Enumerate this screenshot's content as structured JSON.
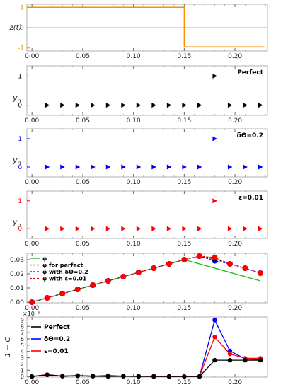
{
  "chart_data": [
    {
      "type": "line",
      "ylabel": "z(t)",
      "x_ticks": [
        "0.00",
        "0.05",
        "0.10",
        "0.15",
        "0.20"
      ],
      "y_ticks": [
        "1",
        "0",
        "-1"
      ],
      "xlim": [
        -0.005,
        0.232
      ],
      "ylim": [
        -1.15,
        1.15
      ],
      "series": [
        {
          "color": "#ff8c00",
          "x": [
            -0.005,
            0.15,
            0.15,
            0.229
          ],
          "y": [
            1,
            1,
            -0.95,
            -0.95
          ]
        }
      ],
      "hline": 0
    },
    {
      "type": "scatter",
      "ylabel": "y_n",
      "annotation": "Perfect",
      "x_ticks": [
        "0.00",
        "0.05",
        "0.10",
        "0.15",
        "0.20"
      ],
      "y_ticks": [
        "1.",
        "0."
      ],
      "xlim": [
        -0.005,
        0.232
      ],
      "ylim": [
        -0.35,
        1.35
      ],
      "color": "#000000",
      "x": [
        0.015,
        0.03,
        0.045,
        0.06,
        0.075,
        0.09,
        0.105,
        0.12,
        0.135,
        0.15,
        0.165,
        0.18,
        0.195,
        0.21,
        0.225
      ],
      "y": [
        0,
        0,
        0,
        0,
        0,
        0,
        0,
        0,
        0,
        0,
        0,
        1,
        0,
        0,
        0
      ]
    },
    {
      "type": "scatter",
      "ylabel": "y_n",
      "annotation": "δΘ=0.2",
      "x_ticks": [
        "0.00",
        "0.05",
        "0.10",
        "0.15",
        "0.20"
      ],
      "y_ticks": [
        "1.",
        "0."
      ],
      "xlim": [
        -0.005,
        0.232
      ],
      "ylim": [
        -0.35,
        1.35
      ],
      "color": "#0000ff",
      "x": [
        0.015,
        0.03,
        0.045,
        0.06,
        0.075,
        0.09,
        0.105,
        0.12,
        0.135,
        0.15,
        0.165,
        0.18,
        0.195,
        0.21,
        0.225
      ],
      "y": [
        0,
        0,
        0,
        0,
        0,
        0,
        0,
        0,
        0,
        0,
        0,
        1,
        0,
        0,
        0
      ]
    },
    {
      "type": "scatter",
      "ylabel": "y_n",
      "annotation": "ε=0.01",
      "x_ticks": [
        "0.00",
        "0.05",
        "0.10",
        "0.15",
        "0.20"
      ],
      "y_ticks": [
        "1.",
        "0."
      ],
      "xlim": [
        -0.005,
        0.232
      ],
      "ylim": [
        -0.35,
        1.35
      ],
      "color": "#ff0000",
      "x": [
        0.015,
        0.03,
        0.045,
        0.06,
        0.075,
        0.09,
        0.105,
        0.12,
        0.135,
        0.15,
        0.165,
        0.18,
        0.195,
        0.21,
        0.225
      ],
      "y": [
        0,
        0,
        0,
        0,
        0,
        0,
        0,
        0,
        0,
        0,
        0,
        1,
        0,
        0,
        0
      ]
    },
    {
      "type": "line",
      "x_ticks": [
        "0.00",
        "0.05",
        "0.10",
        "0.15",
        "0.20"
      ],
      "y_ticks": [
        "0.00",
        "0.01",
        "0.02",
        "0.03"
      ],
      "xlim": [
        -0.005,
        0.232
      ],
      "ylim": [
        -0.0005,
        0.0345
      ],
      "legend": [
        "φ",
        "φ for perfect",
        "φ with δΘ=0.2",
        "φ with ε=0.01"
      ],
      "legend_position": "top-left",
      "phi": {
        "color": "#22bb22",
        "x": [
          0,
          0.15,
          0.225
        ],
        "y": [
          0,
          0.03,
          0.015
        ]
      },
      "perfect": {
        "color": "#000000",
        "x": [
          0,
          0.015,
          0.03,
          0.045,
          0.06,
          0.075,
          0.09,
          0.105,
          0.12,
          0.135,
          0.15,
          0.165,
          0.18,
          0.195,
          0.21,
          0.225
        ],
        "y": [
          0,
          0.003,
          0.006,
          0.009,
          0.012,
          0.015,
          0.018,
          0.021,
          0.024,
          0.027,
          0.03,
          0.0325,
          0.0305,
          0.027,
          0.024,
          0.0205
        ]
      },
      "dtheta": {
        "color": "#0000ff",
        "x": [
          0,
          0.015,
          0.03,
          0.045,
          0.06,
          0.075,
          0.09,
          0.105,
          0.12,
          0.135,
          0.15,
          0.165,
          0.18,
          0.195,
          0.21,
          0.225
        ],
        "y": [
          0,
          0.003,
          0.006,
          0.009,
          0.012,
          0.015,
          0.018,
          0.021,
          0.024,
          0.027,
          0.03,
          0.0325,
          0.0292,
          0.027,
          0.024,
          0.0205
        ]
      },
      "eps": {
        "color": "#ff0000",
        "x": [
          0,
          0.015,
          0.03,
          0.045,
          0.06,
          0.075,
          0.09,
          0.105,
          0.12,
          0.135,
          0.15,
          0.165,
          0.18,
          0.195,
          0.21,
          0.225
        ],
        "y": [
          0,
          0.003,
          0.006,
          0.009,
          0.012,
          0.015,
          0.018,
          0.021,
          0.024,
          0.027,
          0.03,
          0.0325,
          0.0315,
          0.027,
          0.024,
          0.0205
        ]
      }
    },
    {
      "type": "line",
      "ylabel": "1 − C",
      "y_exponent": "×10⁻⁶",
      "x_ticks": [
        "0.00",
        "0.05",
        "0.10",
        "0.15",
        "0.20"
      ],
      "y_ticks": [
        "0",
        "1",
        "2",
        "3",
        "4",
        "5",
        "6",
        "7",
        "8",
        "9"
      ],
      "xlim": [
        -0.005,
        0.232
      ],
      "ylim": [
        -0.1,
        9.5
      ],
      "legend_position": "top-left",
      "x": [
        0,
        0.015,
        0.03,
        0.045,
        0.06,
        0.075,
        0.09,
        0.105,
        0.12,
        0.135,
        0.15,
        0.165,
        0.18,
        0.195,
        0.21,
        0.225
      ],
      "series": [
        {
          "name": "Perfect",
          "color": "#000000",
          "values": [
            0,
            0.25,
            0.05,
            0.1,
            0.05,
            0,
            0.05,
            0,
            0,
            0,
            0,
            0,
            2.6,
            2.6,
            2.6,
            2.6
          ]
        },
        {
          "name": "δΘ=0.2",
          "color": "#0000ff",
          "values": [
            0,
            0.3,
            0.05,
            0.15,
            0.05,
            0.15,
            0.05,
            0.05,
            0.05,
            0,
            0,
            0,
            9.0,
            4.1,
            2.8,
            2.7
          ]
        },
        {
          "name": "ε=0.01",
          "color": "#ff0000",
          "values": [
            0,
            0.3,
            0.05,
            0.15,
            0.05,
            0.05,
            0.05,
            0.05,
            0,
            0,
            0,
            0,
            6.3,
            3.6,
            2.9,
            2.9
          ]
        }
      ]
    }
  ]
}
